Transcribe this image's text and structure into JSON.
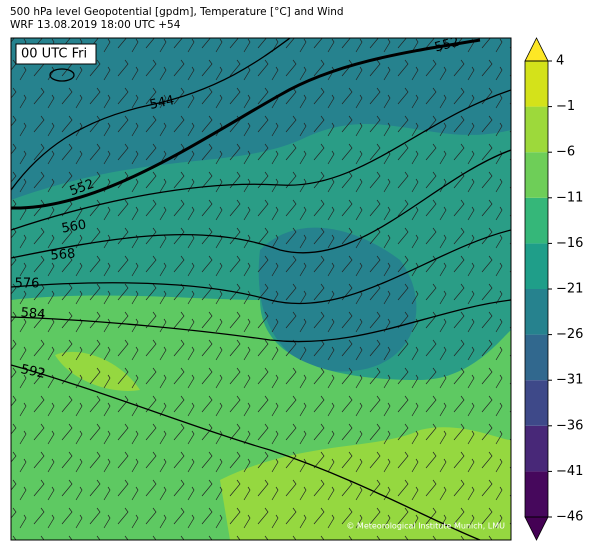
{
  "header": {
    "title": "500 hPa level Geopotential [gpdm], Temperature [°C] and Wind",
    "subtitle": "WRF 13.08.2019 18:00 UTC +54"
  },
  "map": {
    "time_label": "00 UTC Fri",
    "contour_labels": [
      552,
      544,
      552,
      560,
      568,
      576,
      584,
      592
    ],
    "copyright": "© Meteorological Institute Munich, LMU"
  },
  "colorbar": {
    "ticks": [
      {
        "value": -46,
        "label": "−46"
      },
      {
        "value": -41,
        "label": "−41"
      },
      {
        "value": -36,
        "label": "−36"
      },
      {
        "value": -31,
        "label": "−31"
      },
      {
        "value": -26,
        "label": "−26"
      },
      {
        "value": -21,
        "label": "−21"
      },
      {
        "value": -16,
        "label": "−16"
      },
      {
        "value": -11,
        "label": "−11"
      },
      {
        "value": -6,
        "label": "−6"
      },
      {
        "value": -1,
        "label": "−1"
      },
      4
    ],
    "colors": [
      "#46085c",
      "#482878",
      "#3e4989",
      "#31688e",
      "#26828e",
      "#1f9e89",
      "#35b779",
      "#6ece58",
      "#9dd93b",
      "#d4e21a"
    ],
    "under_color": "#440154",
    "over_color": "#fde725"
  }
}
